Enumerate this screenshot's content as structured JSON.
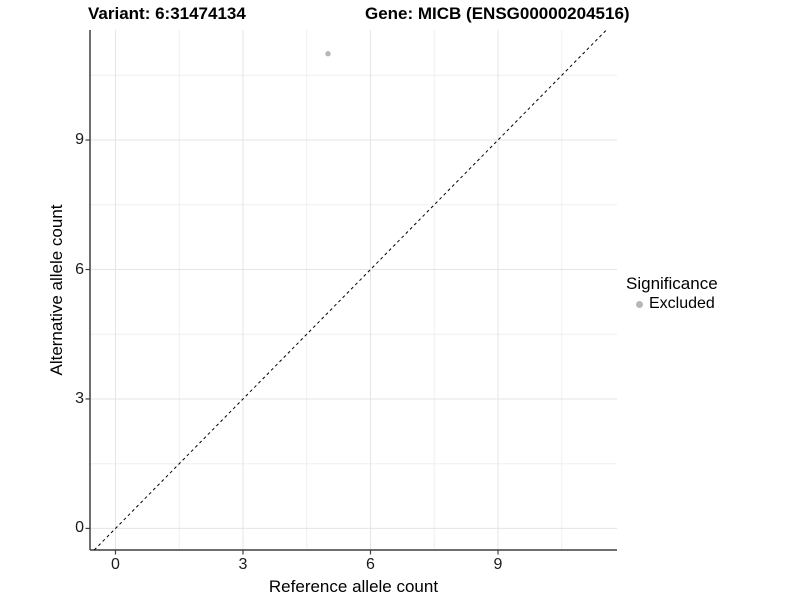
{
  "titles": {
    "variant": "Variant: 6:31474134",
    "gene": "Gene: MICB (ENSG00000204516)"
  },
  "legend": {
    "title": "Significance",
    "items": [
      {
        "label": "Excluded",
        "color": "#b7b7b7"
      }
    ]
  },
  "chart_data": {
    "type": "scatter",
    "title_left": "Variant: 6:31474134",
    "title_right": "Gene: MICB (ENSG00000204516)",
    "xlabel": "Reference allele count",
    "ylabel": "Alternative allele count",
    "x_ticks": [
      0,
      3,
      6,
      9
    ],
    "y_ticks": [
      0,
      3,
      6,
      9
    ],
    "xlim": [
      -0.6,
      11.8
    ],
    "ylim": [
      -0.5,
      11.55
    ],
    "grid": "major+minor",
    "legend_position": "right",
    "identity_line": {
      "equation": "y = x",
      "style": "dashed",
      "color": "#000000"
    },
    "series": [
      {
        "name": "Excluded",
        "color": "#b7b7b7",
        "points": [
          [
            5,
            11
          ]
        ]
      }
    ]
  },
  "colors": {
    "background": "#ffffff",
    "grid_major": "#e5e5e5",
    "grid_minor": "#efefef",
    "axis_line": "#3f3f3f",
    "tick_label": "#1a1a1a",
    "text": "#000000"
  }
}
